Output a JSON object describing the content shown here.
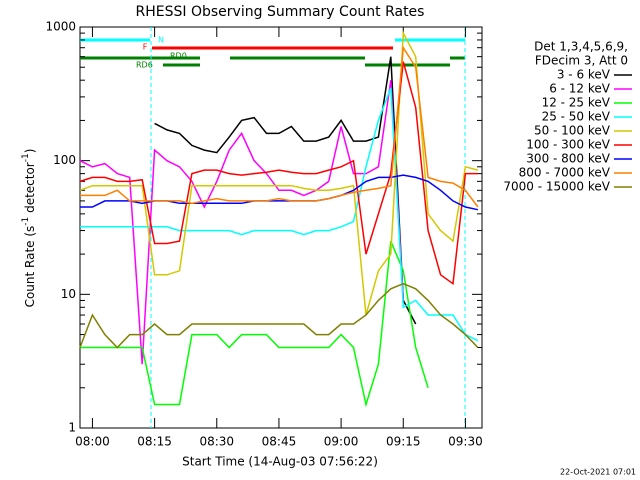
{
  "chart_data": {
    "type": "line",
    "title": "RHESSI Observing Summary Count Rates",
    "x_label": "Start Time (14-Aug-03 07:56:22)",
    "y_label": {
      "parts": [
        "Count Rate (s",
        "-1",
        " detector",
        "-1",
        ")"
      ]
    },
    "log_y": true,
    "ylim": [
      1,
      1000
    ],
    "yticks": [
      1,
      10,
      100,
      1000
    ],
    "xlim": [
      "07:57",
      "09:34"
    ],
    "xticks": [
      "08:00",
      "08:15",
      "08:30",
      "08:45",
      "09:00",
      "09:15",
      "09:30"
    ],
    "legend_header": [
      "Det 1,3,4,5,6,9,",
      "FDecim 3, Att 0"
    ],
    "flags": [
      {
        "label": "N",
        "color": "#00ffff"
      },
      {
        "label": "F",
        "color": "#ff0000"
      },
      {
        "label": "RD0",
        "color": "#008000"
      },
      {
        "label": "RD6",
        "color": "#008000"
      }
    ],
    "footer": "22-Oct-2021 07:01",
    "x": [
      "07:57",
      "08:00",
      "08:03",
      "08:06",
      "08:09",
      "08:12",
      "08:15",
      "08:18",
      "08:21",
      "08:24",
      "08:27",
      "08:30",
      "08:33",
      "08:36",
      "08:39",
      "08:42",
      "08:45",
      "08:48",
      "08:51",
      "08:54",
      "08:57",
      "09:00",
      "09:03",
      "09:06",
      "09:09",
      "09:12",
      "09:15",
      "09:18",
      "09:21",
      "09:24",
      "09:27",
      "09:30",
      "09:33"
    ],
    "series": [
      {
        "name": "3 - 6 keV",
        "color": "#000000",
        "values": [
          null,
          null,
          null,
          null,
          null,
          null,
          190,
          170,
          160,
          130,
          120,
          115,
          150,
          200,
          210,
          160,
          160,
          180,
          140,
          140,
          150,
          200,
          140,
          140,
          150,
          600,
          9,
          6,
          null,
          null,
          null,
          null,
          null
        ]
      },
      {
        "name": "6 - 12 keV",
        "color": "#ff00ff",
        "values": [
          100,
          90,
          95,
          80,
          75,
          3,
          120,
          100,
          90,
          70,
          45,
          70,
          120,
          160,
          100,
          80,
          60,
          60,
          55,
          60,
          70,
          180,
          80,
          80,
          90,
          400,
          9,
          null,
          null,
          null,
          null,
          null,
          null
        ]
      },
      {
        "name": "12 - 25 keV",
        "color": "#00ff00",
        "values": [
          4,
          4,
          4,
          4,
          4,
          4,
          1.5,
          1.5,
          1.5,
          5,
          5,
          5,
          4,
          5,
          5,
          5,
          4,
          4,
          4,
          4,
          4,
          5,
          4,
          1.5,
          3,
          25,
          15,
          4,
          2,
          null,
          null,
          null,
          null
        ]
      },
      {
        "name": "25 - 50 keV",
        "color": "#00ffff",
        "values": [
          32,
          32,
          32,
          32,
          32,
          32,
          32,
          32,
          30,
          30,
          30,
          30,
          30,
          28,
          30,
          30,
          30,
          30,
          28,
          30,
          30,
          32,
          35,
          90,
          200,
          350,
          8,
          9,
          7,
          7,
          7,
          5,
          4.5
        ]
      },
      {
        "name": "50 - 100 keV",
        "color": "#d4c800",
        "values": [
          60,
          65,
          65,
          65,
          65,
          65,
          14,
          14,
          15,
          65,
          65,
          65,
          65,
          65,
          65,
          65,
          65,
          65,
          62,
          60,
          60,
          62,
          65,
          7,
          15,
          20,
          900,
          600,
          40,
          30,
          25,
          90,
          85
        ]
      },
      {
        "name": "100 - 300 keV",
        "color": "#ff0000",
        "values": [
          70,
          75,
          75,
          70,
          70,
          72,
          24,
          24,
          25,
          80,
          85,
          85,
          80,
          78,
          80,
          82,
          85,
          82,
          80,
          80,
          85,
          90,
          100,
          20,
          40,
          80,
          550,
          250,
          30,
          14,
          12,
          80,
          80
        ]
      },
      {
        "name": "300 - 800 keV",
        "color": "#0000ff",
        "values": [
          45,
          45,
          50,
          50,
          50,
          48,
          50,
          50,
          48,
          48,
          48,
          48,
          48,
          48,
          50,
          50,
          50,
          50,
          50,
          50,
          52,
          55,
          60,
          70,
          75,
          75,
          78,
          75,
          70,
          60,
          50,
          45,
          43
        ]
      },
      {
        "name": "800 - 7000 keV",
        "color": "#ff8000",
        "values": [
          55,
          55,
          55,
          60,
          50,
          50,
          50,
          50,
          50,
          48,
          50,
          52,
          50,
          50,
          50,
          50,
          52,
          50,
          50,
          50,
          52,
          55,
          58,
          60,
          62,
          65,
          700,
          500,
          75,
          70,
          68,
          60,
          45
        ]
      },
      {
        "name": "7000 - 15000 keV",
        "color": "#808000",
        "values": [
          4,
          7,
          5,
          4,
          5,
          5,
          6,
          5,
          5,
          6,
          6,
          6,
          6,
          6,
          6,
          6,
          6,
          6,
          6,
          5,
          5,
          6,
          6,
          7,
          9,
          11,
          12,
          11,
          9,
          7,
          6,
          5,
          4
        ]
      }
    ]
  }
}
